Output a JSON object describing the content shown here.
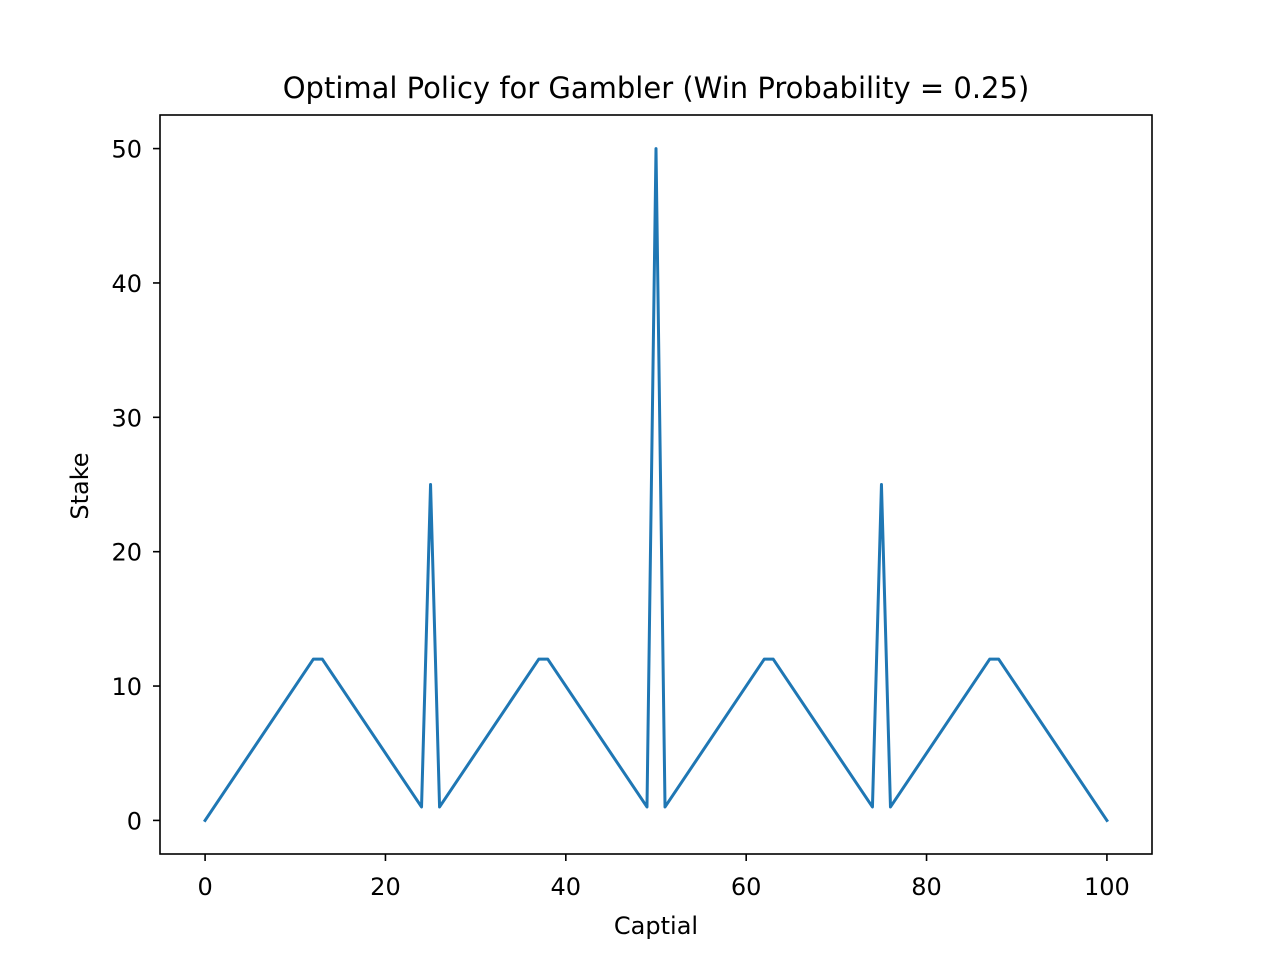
{
  "chart_data": {
    "type": "line",
    "title": "Optimal Policy for Gambler (Win Probability = 0.25)",
    "xlabel": "Captial",
    "ylabel": "Stake",
    "xlim": [
      -5,
      105
    ],
    "ylim": [
      -2.5,
      52.5
    ],
    "xticks": [
      0,
      20,
      40,
      60,
      80,
      100
    ],
    "yticks": [
      0,
      10,
      20,
      30,
      40,
      50
    ],
    "grid": false,
    "line_color": "#1f77b4",
    "series": [
      {
        "x": [
          0,
          12,
          13,
          24,
          25,
          26,
          37,
          38,
          49,
          50,
          51,
          62,
          63,
          74,
          75,
          76,
          87,
          88,
          100
        ],
        "values": [
          0,
          12,
          12,
          1,
          25,
          1,
          12,
          12,
          1,
          50,
          1,
          12,
          12,
          1,
          25,
          1,
          12,
          12,
          0
        ]
      }
    ]
  }
}
